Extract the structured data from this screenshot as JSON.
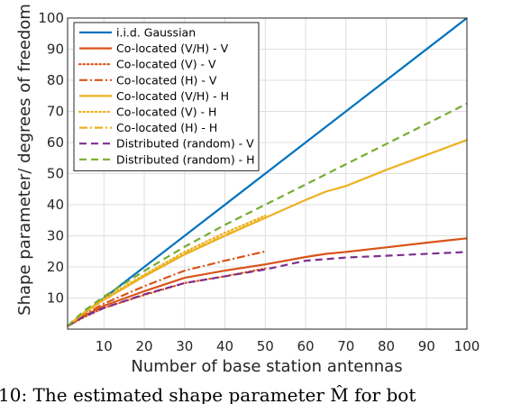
{
  "chart_data": {
    "type": "line",
    "xlabel": "Number of base station antennas",
    "ylabel": "Shape parameter/ degrees of freedom",
    "xlim": [
      1,
      100
    ],
    "ylim": [
      0,
      100
    ],
    "xticks": [
      10,
      20,
      30,
      40,
      50,
      60,
      70,
      80,
      90,
      100
    ],
    "yticks": [
      10,
      20,
      30,
      40,
      50,
      60,
      70,
      80,
      90,
      100
    ],
    "grid": true,
    "legend_position": "top-left",
    "series": [
      {
        "name": "i.i.d. Gaussian",
        "color": "#0072bd",
        "dash": "solid",
        "x": [
          1,
          100
        ],
        "y": [
          1,
          100
        ]
      },
      {
        "name": "Co-located (V/H) - V",
        "color": "#d95319",
        "dash": "solid",
        "x": [
          1,
          5,
          10,
          20,
          30,
          40,
          50,
          60,
          65,
          70,
          80,
          90,
          100
        ],
        "y": [
          1,
          4.2,
          7.5,
          12.2,
          16.5,
          18.8,
          20.8,
          23.2,
          24.2,
          24.8,
          26.3,
          27.8,
          29.2
        ]
      },
      {
        "name": "Co-located (V) - V",
        "color": "#d95319",
        "dash": "dot",
        "x": [
          1,
          5,
          10,
          20,
          30,
          40,
          50
        ],
        "y": [
          1,
          3.8,
          6.8,
          11.0,
          14.8,
          17.0,
          19.5
        ]
      },
      {
        "name": "Co-located (H) - V",
        "color": "#d95319",
        "dash": "dashdot",
        "x": [
          1,
          5,
          10,
          20,
          30,
          40,
          50
        ],
        "y": [
          1,
          4.5,
          8.2,
          13.8,
          18.8,
          22.0,
          25.0
        ]
      },
      {
        "name": "Co-located (V/H) - H",
        "color": "#edb120",
        "dash": "solid",
        "x": [
          1,
          5,
          10,
          20,
          30,
          40,
          50,
          60,
          65,
          70,
          80,
          90,
          100
        ],
        "y": [
          1,
          5.2,
          9.5,
          17.0,
          24.0,
          30.0,
          35.8,
          41.5,
          44.2,
          46.0,
          51.2,
          56.0,
          60.8
        ]
      },
      {
        "name": "Co-located (V) - H",
        "color": "#edb120",
        "dash": "dot",
        "x": [
          1,
          5,
          10,
          20,
          30,
          40,
          50
        ],
        "y": [
          1,
          5.3,
          9.8,
          17.5,
          24.8,
          31.0,
          36.5
        ]
      },
      {
        "name": "Co-located (H) - H",
        "color": "#edb120",
        "dash": "dashdot",
        "x": [
          1,
          5,
          10,
          20,
          30,
          40,
          50
        ],
        "y": [
          1,
          5.1,
          9.4,
          17.0,
          24.2,
          30.2,
          35.8
        ]
      },
      {
        "name": "Distributed (random) - V",
        "color": "#7e2f8e",
        "dash": "dash",
        "x": [
          1,
          5,
          10,
          20,
          30,
          40,
          50,
          60,
          70,
          80,
          90,
          100
        ],
        "y": [
          1,
          4.0,
          6.8,
          11.2,
          14.8,
          17.0,
          19.2,
          22.0,
          23.0,
          23.6,
          24.2,
          24.8
        ]
      },
      {
        "name": "Distributed (random) - H",
        "color": "#77ac30",
        "dash": "dash",
        "x": [
          1,
          5,
          10,
          20,
          30,
          40,
          50,
          60,
          70,
          80,
          90,
          100
        ],
        "y": [
          1,
          5.8,
          10.5,
          18.7,
          26.5,
          33.5,
          40.0,
          46.5,
          53.0,
          59.5,
          66.0,
          72.5
        ]
      }
    ]
  },
  "caption": "10: The estimated shape parameter  M̂  for bot"
}
